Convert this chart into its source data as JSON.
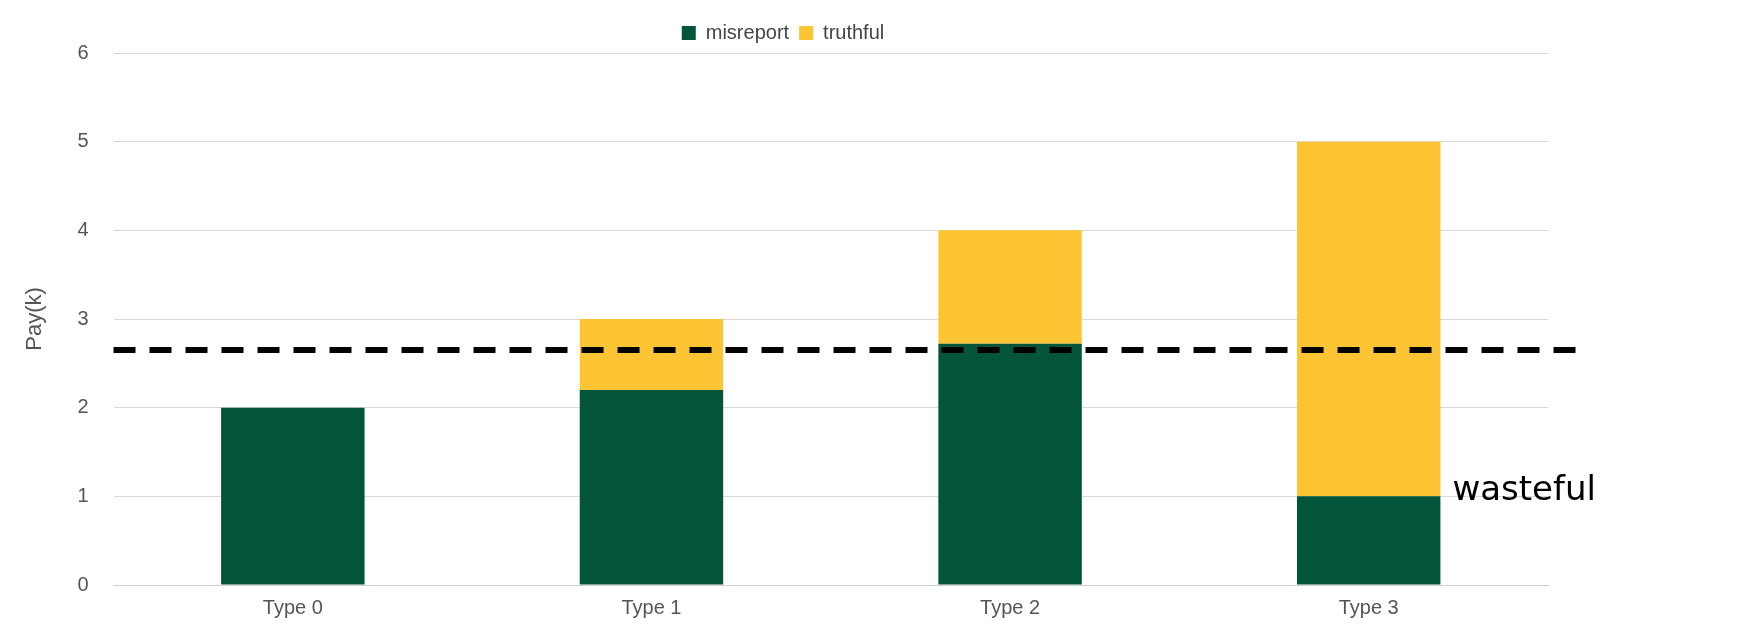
{
  "chart_data": {
    "type": "bar",
    "ylabel": "Pay(k)",
    "categories": [
      "Type 0",
      "Type 1",
      "Type 2",
      "Type 3"
    ],
    "stacked": true,
    "series": [
      {
        "name": "misreport",
        "color": "#02543a",
        "values": [
          2,
          2.2,
          2.72,
          1
        ]
      },
      {
        "name": "truthful",
        "color": "#fdc533",
        "values": [
          0,
          0.8,
          1.28,
          4
        ]
      }
    ],
    "ylim": [
      0,
      6
    ],
    "yticks": [
      0,
      1,
      2,
      3,
      4,
      5,
      6
    ],
    "grid": "y",
    "legend": "top",
    "ref_lines": [
      {
        "axis": "y",
        "value": 2.65,
        "color": "#000000",
        "line_style": "dashed"
      }
    ],
    "annotations": [
      {
        "text": "wasteful",
        "x": "Type 3",
        "y": 1
      }
    ]
  }
}
